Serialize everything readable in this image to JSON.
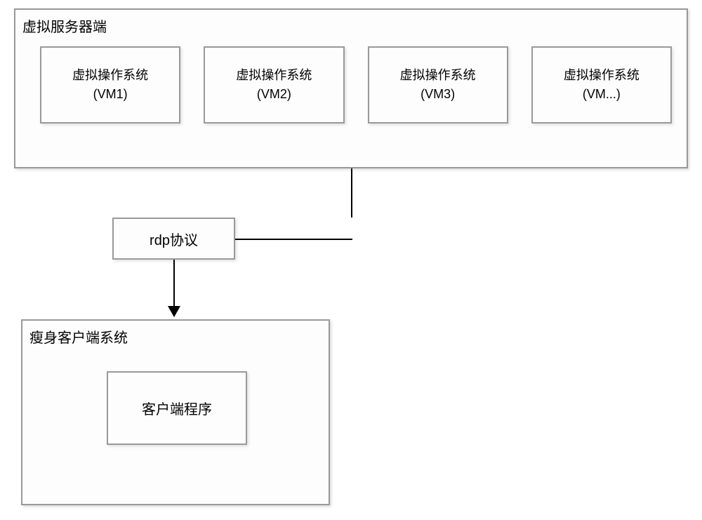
{
  "diagram": {
    "type": "flowchart",
    "background_color": "#ffffff",
    "box_border_color": "#999999",
    "box_fill_color": "#fdfdfd",
    "line_color": "#000000",
    "text_color": "#000000",
    "title_fontsize": 20,
    "body_fontsize": 18,
    "server": {
      "title": "虚拟服务器端",
      "vms": [
        {
          "line1": "虚拟操作系统",
          "line2": "(VM1)"
        },
        {
          "line1": "虚拟操作系统",
          "line2": "(VM2)"
        },
        {
          "line1": "虚拟操作系统",
          "line2": "(VM3)"
        },
        {
          "line1": "虚拟操作系统",
          "line2": "(VM...)"
        }
      ]
    },
    "protocol": {
      "label": "rdp协议"
    },
    "client": {
      "title": "瘦身客户端系统",
      "program_label": "客户端程序"
    },
    "edges": [
      {
        "from": "server",
        "to": "protocol",
        "style": "line"
      },
      {
        "from": "protocol",
        "to": "client",
        "style": "arrow"
      }
    ]
  }
}
